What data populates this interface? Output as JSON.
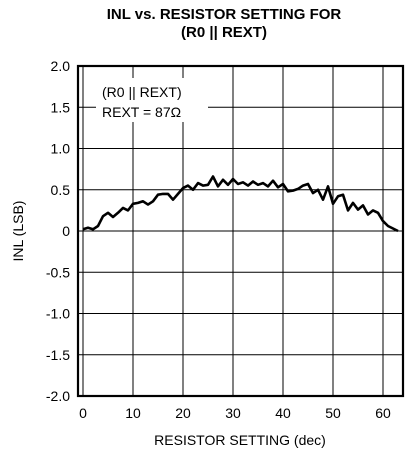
{
  "chart_data": {
    "type": "line",
    "title": "INL vs. RESISTOR SETTING FOR",
    "subtitle": "(R0 || REXT)",
    "xlabel": "RESISTOR SETTING (dec)",
    "ylabel": "INL (LSB)",
    "xlim": [
      -1,
      64
    ],
    "ylim": [
      -2.0,
      2.0
    ],
    "x_ticks": [
      0,
      10,
      20,
      30,
      40,
      50,
      60
    ],
    "y_ticks": [
      2.0,
      1.5,
      1.0,
      0.5,
      0,
      -0.5,
      -1.0,
      -1.5,
      -2.0
    ],
    "y_tick_labels": [
      "2.0",
      "1.5",
      "1.0",
      "0.5",
      "0",
      "-0.5",
      "-1.0",
      "-1.5",
      "-2.0"
    ],
    "grid": true,
    "annotation": {
      "line1": "(R0 || REXT)",
      "line2": "REXT = 87Ω"
    },
    "series": [
      {
        "x": [
          0,
          1,
          2,
          3,
          4,
          5,
          6,
          7,
          8,
          9,
          10,
          11,
          12,
          13,
          14,
          15,
          16,
          17,
          18,
          19,
          20,
          21,
          22,
          23,
          24,
          25,
          26,
          27,
          28,
          29,
          30,
          31,
          32,
          33,
          34,
          35,
          36,
          37,
          38,
          39,
          40,
          41,
          42,
          43,
          44,
          45,
          46,
          47,
          48,
          49,
          50,
          51,
          52,
          53,
          54,
          55,
          56,
          57,
          58,
          59,
          60,
          61,
          62,
          63
        ],
        "values": [
          0.02,
          0.04,
          0.02,
          0.06,
          0.18,
          0.22,
          0.17,
          0.22,
          0.28,
          0.25,
          0.33,
          0.34,
          0.36,
          0.32,
          0.36,
          0.44,
          0.45,
          0.45,
          0.38,
          0.45,
          0.52,
          0.55,
          0.5,
          0.58,
          0.55,
          0.56,
          0.66,
          0.54,
          0.62,
          0.56,
          0.63,
          0.57,
          0.59,
          0.55,
          0.6,
          0.56,
          0.58,
          0.54,
          0.61,
          0.53,
          0.57,
          0.48,
          0.49,
          0.51,
          0.55,
          0.57,
          0.46,
          0.5,
          0.38,
          0.54,
          0.33,
          0.42,
          0.44,
          0.25,
          0.34,
          0.26,
          0.31,
          0.2,
          0.25,
          0.22,
          0.12,
          0.06,
          0.03,
          0.0
        ]
      }
    ]
  }
}
